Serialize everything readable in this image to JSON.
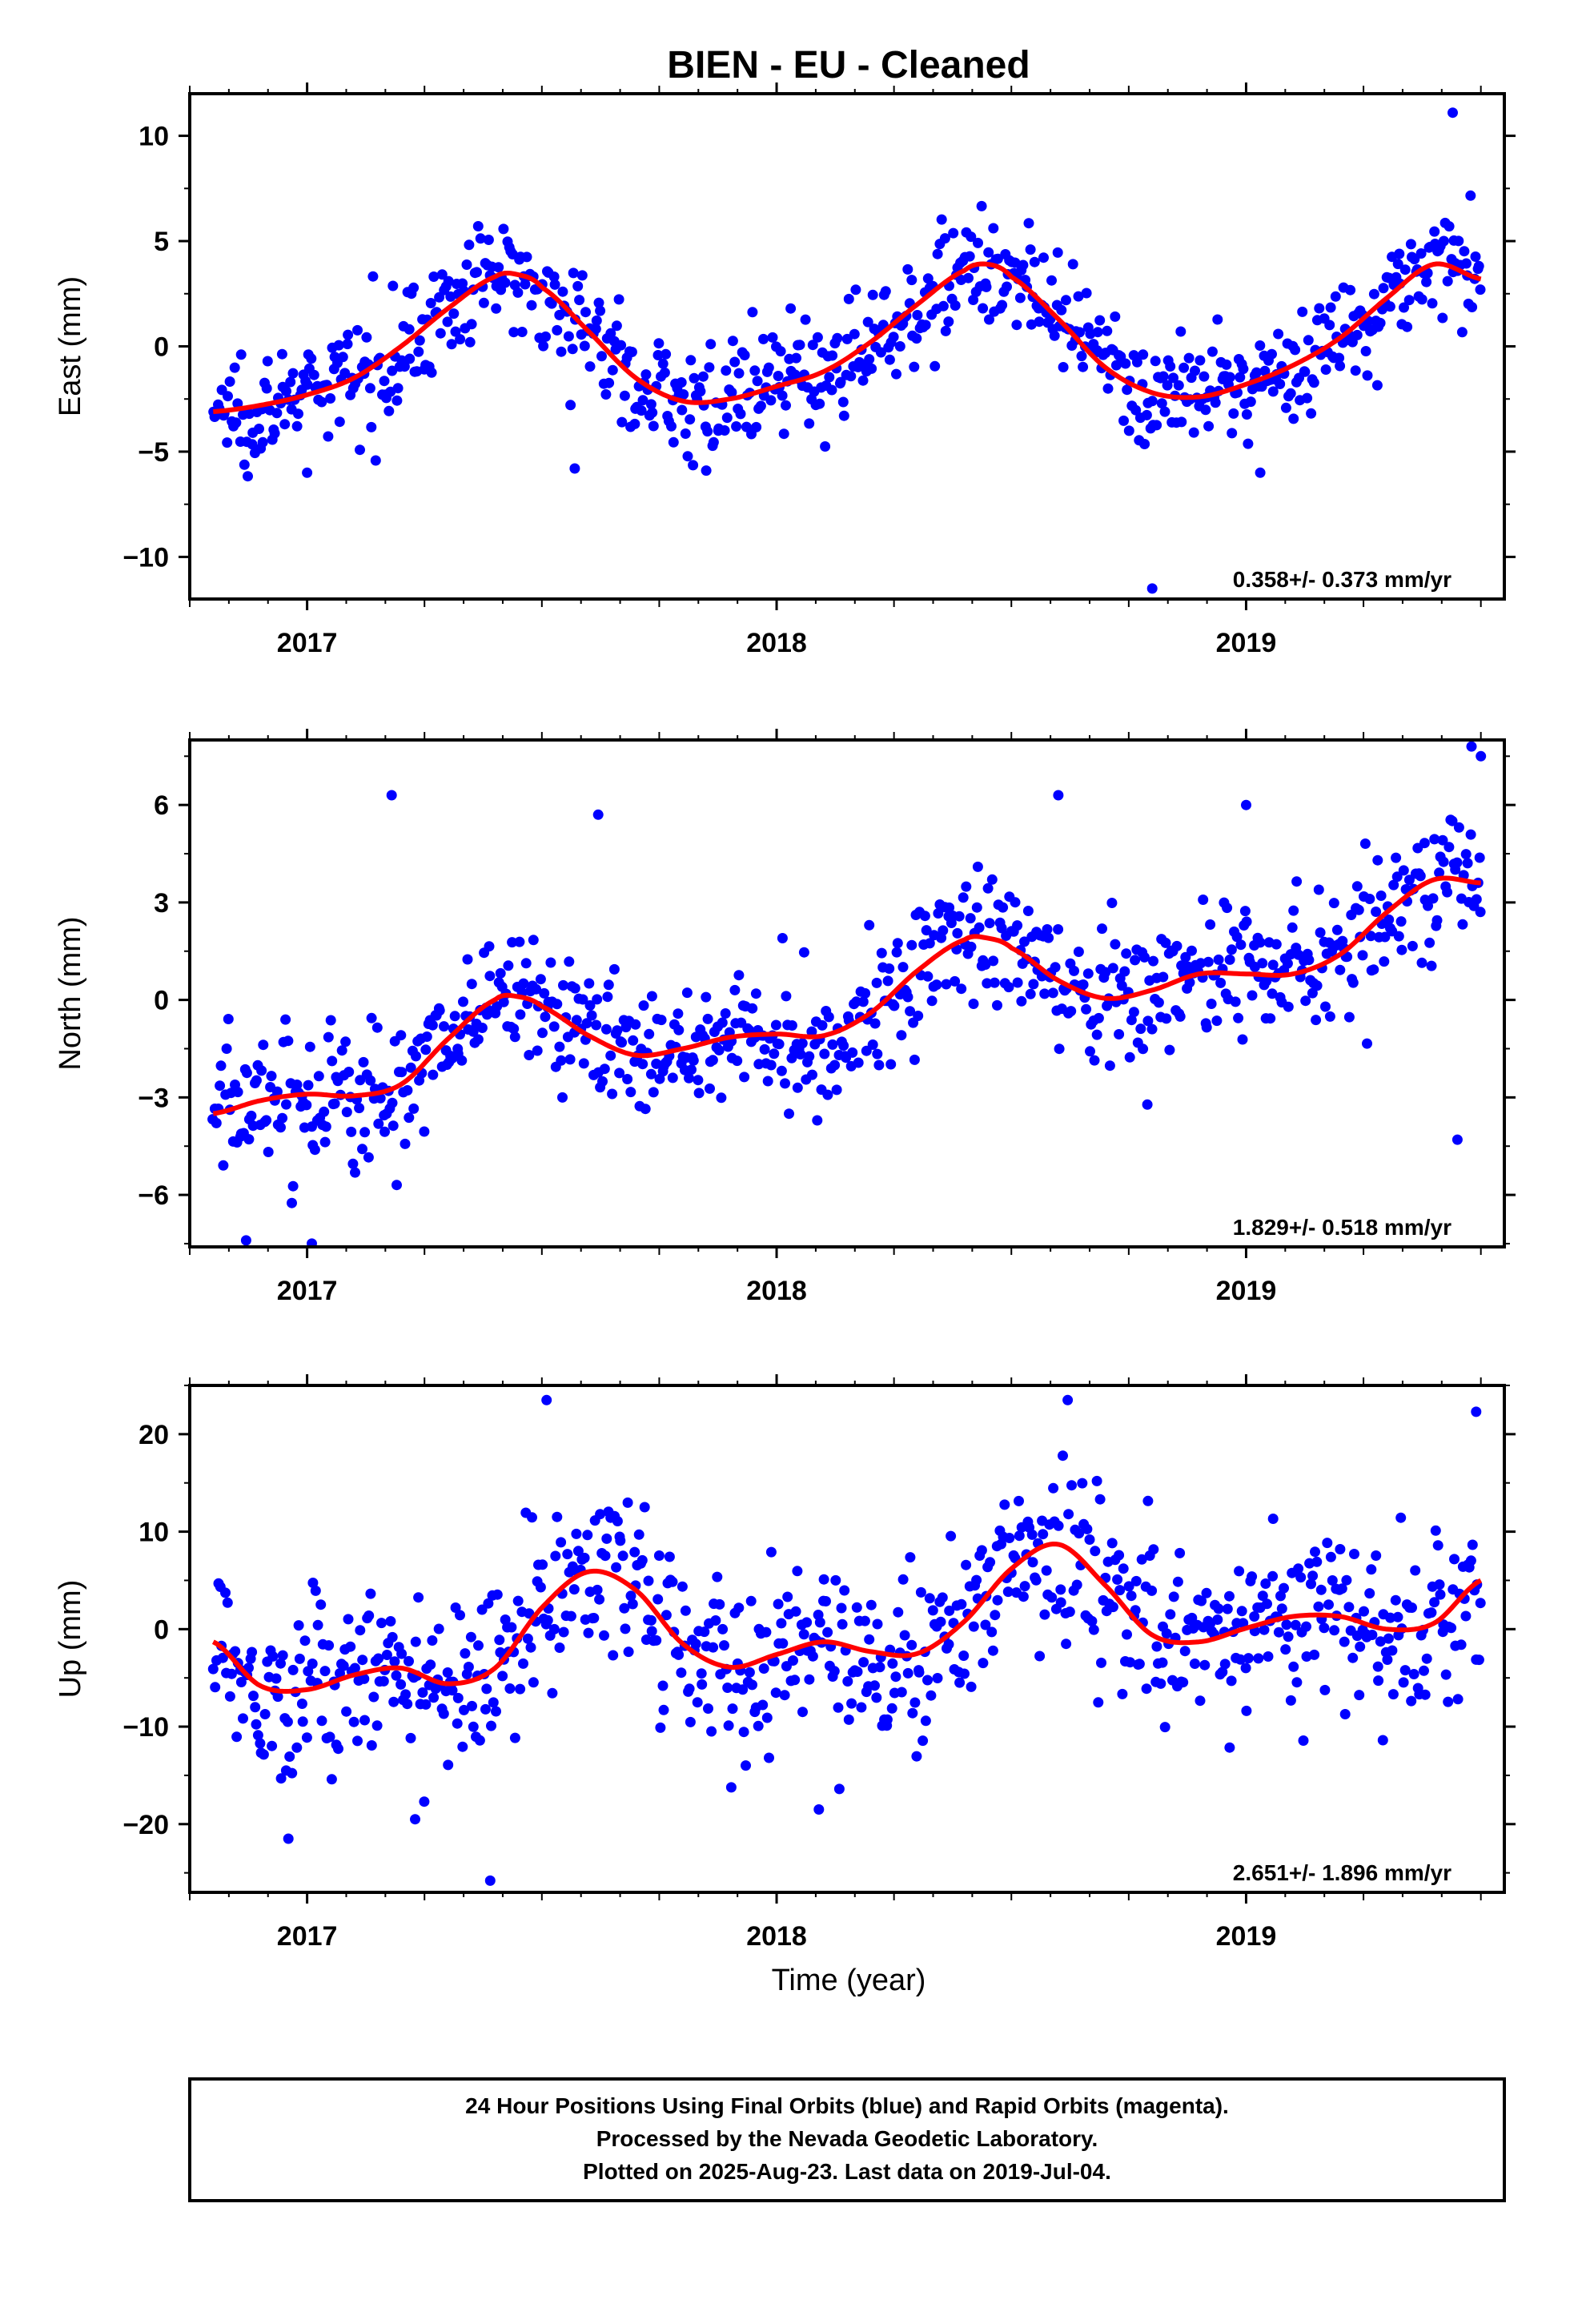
{
  "title": "BIEN  - EU - Cleaned",
  "xlabel": "Time (year)",
  "caption": [
    "24 Hour Positions Using Final Orbits (blue) and Rapid Orbits (magenta).",
    "Processed by the Nevada Geodetic Laboratory.",
    "Plotted on 2025-Aug-23. Last data on 2019-Jul-04."
  ],
  "colors": {
    "points": "#0000ff",
    "fit": "#ff0000",
    "frame": "#000000"
  },
  "chart_data": [
    {
      "type": "scatter",
      "ylabel": "East (mm)",
      "rate_text": "0.358+/- 0.373 mm/yr",
      "xlim": [
        2016.75,
        2019.55
      ],
      "ylim": [
        -12,
        12
      ],
      "yticks": [
        -10,
        -5,
        0,
        5,
        10
      ],
      "xticks": [
        2017,
        2018,
        2019
      ],
      "fit": {
        "x": [
          2016.8,
          2016.9,
          2017.0,
          2017.1,
          2017.2,
          2017.3,
          2017.4,
          2017.45,
          2017.5,
          2017.6,
          2017.7,
          2017.8,
          2017.9,
          2018.0,
          2018.1,
          2018.2,
          2018.3,
          2018.4,
          2018.45,
          2018.5,
          2018.6,
          2018.7,
          2018.8,
          2018.9,
          2019.0,
          2019.1,
          2019.2,
          2019.3,
          2019.4,
          2019.5
        ],
        "y": [
          -3.1,
          -2.8,
          -2.3,
          -1.5,
          0.0,
          1.8,
          3.3,
          3.4,
          2.8,
          0.7,
          -1.5,
          -2.6,
          -2.5,
          -1.9,
          -1.2,
          0.2,
          2.0,
          3.6,
          3.9,
          3.3,
          1.3,
          -1.0,
          -2.2,
          -2.4,
          -1.8,
          -0.9,
          0.4,
          2.3,
          3.9,
          3.2
        ]
      },
      "points": {
        "amplitude": 1.3,
        "outliers": [
          [
            2019.44,
            11.1
          ],
          [
            2018.8,
            -11.5
          ],
          [
            2018.03,
            1.8
          ],
          [
            2017.57,
            -5.8
          ],
          [
            2017.85,
            -5.9
          ],
          [
            2017.0,
            -6.0
          ],
          [
            2019.03,
            -6.0
          ]
        ]
      }
    },
    {
      "type": "scatter",
      "ylabel": "North (mm)",
      "rate_text": "1.829+/- 0.518 mm/yr",
      "xlim": [
        2016.75,
        2019.55
      ],
      "ylim": [
        -7.6,
        8.0
      ],
      "yticks": [
        -6,
        -3,
        0,
        3,
        6
      ],
      "xticks": [
        2017,
        2018,
        2019
      ],
      "fit": {
        "x": [
          2016.8,
          2016.9,
          2017.0,
          2017.1,
          2017.2,
          2017.3,
          2017.4,
          2017.45,
          2017.5,
          2017.6,
          2017.7,
          2017.8,
          2017.9,
          2018.0,
          2018.1,
          2018.2,
          2018.3,
          2018.4,
          2018.45,
          2018.5,
          2018.6,
          2018.7,
          2018.8,
          2018.9,
          2019.0,
          2019.1,
          2019.2,
          2019.3,
          2019.4,
          2019.5
        ],
        "y": [
          -3.5,
          -3.1,
          -2.9,
          -2.95,
          -2.6,
          -1.2,
          0.0,
          0.1,
          -0.2,
          -1.1,
          -1.7,
          -1.5,
          -1.15,
          -1.05,
          -1.1,
          -0.4,
          0.9,
          1.85,
          1.9,
          1.6,
          0.6,
          0.05,
          0.3,
          0.8,
          0.8,
          0.8,
          1.4,
          2.7,
          3.7,
          3.6
        ]
      },
      "points": {
        "amplitude": 1.1,
        "outliers": [
          [
            2017.18,
            6.3
          ],
          [
            2018.6,
            6.3
          ],
          [
            2019.48,
            7.8
          ],
          [
            2019.5,
            7.5
          ],
          [
            2016.87,
            -7.4
          ],
          [
            2017.01,
            -7.5
          ],
          [
            2019.45,
            -4.3
          ],
          [
            2017.62,
            5.7
          ],
          [
            2019.0,
            6.0
          ]
        ]
      }
    },
    {
      "type": "scatter",
      "ylabel": "Up (mm)",
      "rate_text": "2.651+/- 1.896 mm/yr",
      "xlim": [
        2016.75,
        2019.55
      ],
      "ylim": [
        -27,
        25
      ],
      "yticks": [
        -20,
        -10,
        0,
        10,
        20
      ],
      "xticks": [
        2017,
        2018,
        2019
      ],
      "fit": {
        "x": [
          2016.8,
          2016.9,
          2017.0,
          2017.1,
          2017.2,
          2017.3,
          2017.4,
          2017.5,
          2017.6,
          2017.7,
          2017.8,
          2017.9,
          2018.0,
          2018.1,
          2018.2,
          2018.3,
          2018.4,
          2018.5,
          2018.6,
          2018.7,
          2018.8,
          2018.9,
          2019.0,
          2019.1,
          2019.2,
          2019.3,
          2019.4,
          2019.5
        ],
        "y": [
          -1.3,
          -5.8,
          -6.2,
          -4.7,
          -4.0,
          -5.6,
          -4.0,
          2.2,
          5.9,
          4.0,
          -1.5,
          -3.9,
          -2.6,
          -1.3,
          -2.3,
          -2.5,
          0.8,
          6.2,
          8.7,
          4.5,
          -0.6,
          -1.3,
          0.1,
          1.3,
          1.3,
          0.0,
          0.6,
          5.0
        ]
      },
      "points": {
        "amplitude": 4.5,
        "outliers": [
          [
            2017.51,
            23.5
          ],
          [
            2018.62,
            23.5
          ],
          [
            2019.49,
            22.3
          ],
          [
            2017.39,
            -25.8
          ],
          [
            2018.09,
            -18.5
          ],
          [
            2017.23,
            -19.5
          ],
          [
            2016.96,
            -21.5
          ]
        ]
      }
    }
  ]
}
